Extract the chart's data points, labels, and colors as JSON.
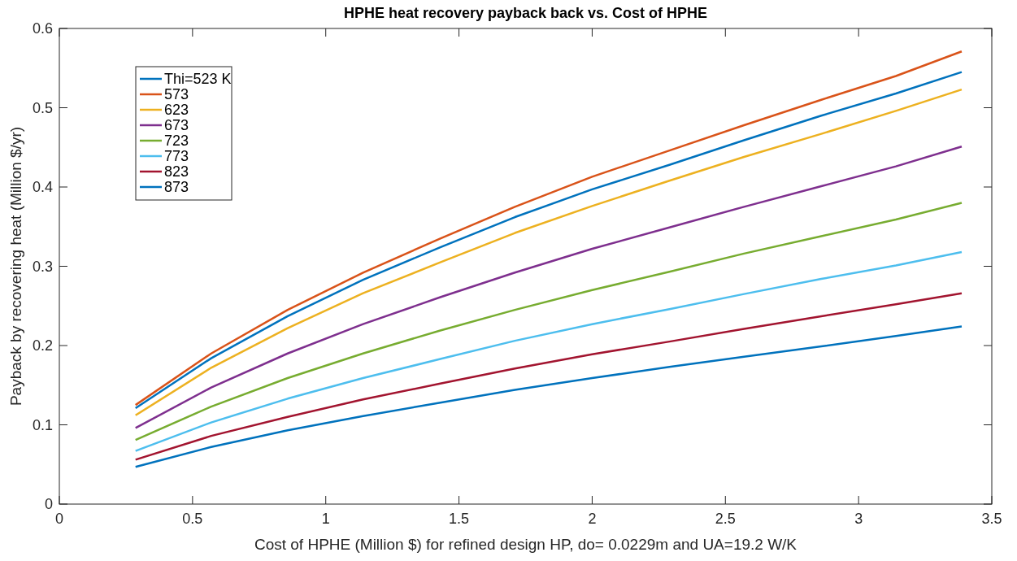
{
  "chart_data": {
    "type": "line",
    "title": "HPHE heat recovery payback back vs. Cost of HPHE",
    "xlabel": "Cost of HPHE (Million $) for refined design HP, do= 0.0229m and UA=19.2 W/K",
    "ylabel": "Payback by recovering heat (Million $/yr)",
    "x": [
      0.286,
      0.57,
      0.857,
      1.14,
      1.43,
      1.71,
      2.0,
      2.29,
      2.57,
      2.86,
      3.14,
      3.387
    ],
    "series": [
      {
        "name": "Thi=523 K",
        "color": "#0072bd",
        "values": [
          0.121,
          0.184,
          0.237,
          0.283,
          0.324,
          0.362,
          0.397,
          0.428,
          0.459,
          0.49,
          0.518,
          0.545
        ]
      },
      {
        "name": "573",
        "color": "#d95319",
        "values": [
          0.125,
          0.19,
          0.245,
          0.292,
          0.335,
          0.375,
          0.413,
          0.446,
          0.478,
          0.51,
          0.54,
          0.571
        ]
      },
      {
        "name": "623",
        "color": "#edb120",
        "values": [
          0.112,
          0.172,
          0.222,
          0.266,
          0.305,
          0.342,
          0.376,
          0.408,
          0.438,
          0.467,
          0.496,
          0.523
        ]
      },
      {
        "name": "673",
        "color": "#7e2f8e",
        "values": [
          0.096,
          0.147,
          0.19,
          0.227,
          0.261,
          0.292,
          0.322,
          0.349,
          0.375,
          0.401,
          0.426,
          0.451
        ]
      },
      {
        "name": "723",
        "color": "#77ac30",
        "values": [
          0.081,
          0.123,
          0.159,
          0.19,
          0.219,
          0.245,
          0.27,
          0.293,
          0.316,
          0.338,
          0.359,
          0.38
        ]
      },
      {
        "name": "773",
        "color": "#4dbeee",
        "values": [
          0.067,
          0.103,
          0.133,
          0.159,
          0.183,
          0.206,
          0.227,
          0.246,
          0.265,
          0.284,
          0.301,
          0.318
        ]
      },
      {
        "name": "823",
        "color": "#a2142f",
        "values": [
          0.056,
          0.086,
          0.11,
          0.132,
          0.152,
          0.171,
          0.189,
          0.205,
          0.221,
          0.237,
          0.252,
          0.266
        ]
      },
      {
        "name": "873",
        "color": "#0072bd",
        "values": [
          0.047,
          0.072,
          0.093,
          0.111,
          0.128,
          0.144,
          0.159,
          0.173,
          0.186,
          0.199,
          0.212,
          0.224
        ]
      }
    ],
    "xlim": [
      0,
      3.5
    ],
    "xticks": [
      0,
      0.5,
      1,
      1.5,
      2,
      2.5,
      3,
      3.5
    ],
    "ylim": [
      0,
      0.6
    ],
    "yticks": [
      0,
      0.1,
      0.2,
      0.3,
      0.4,
      0.5,
      0.6
    ],
    "grid": false,
    "legend": "top left",
    "marker": "none",
    "line_style": "solid"
  }
}
